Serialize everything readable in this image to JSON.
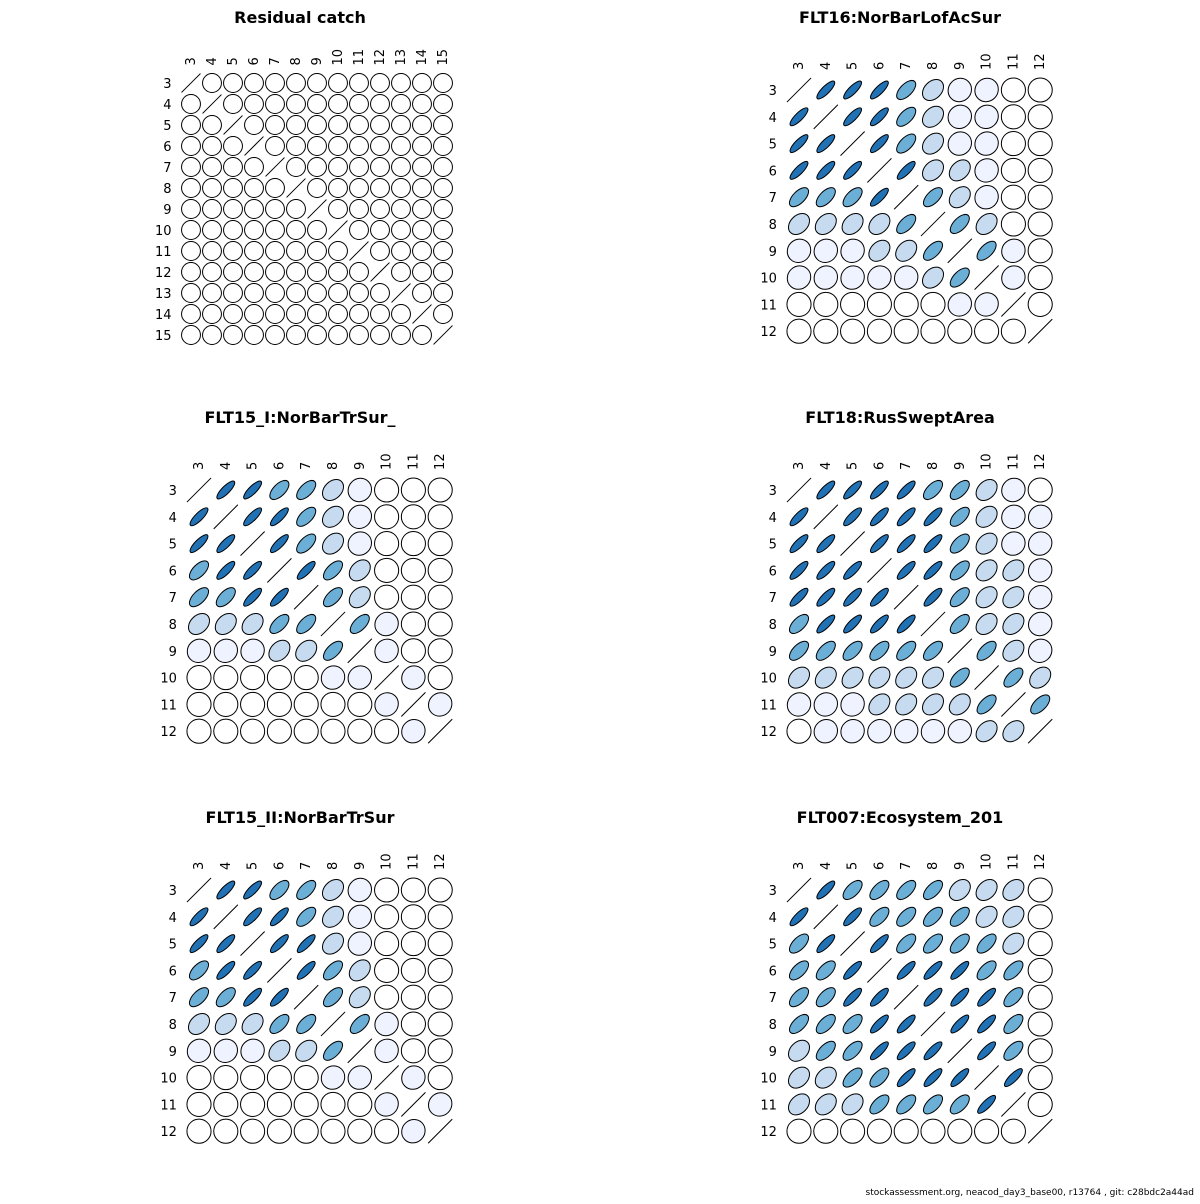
{
  "footer": "stockassessment.org, neacod_day3_base00, r13764 , git: c28bdc2a44ad",
  "color_scale": [
    "#ffffff",
    "#eef3ff",
    "#c6dbef",
    "#6baed6",
    "#2171b5"
  ],
  "chart_data": [
    {
      "type": "heatmap",
      "title": "Residual catch",
      "labels": [
        "3",
        "4",
        "5",
        "6",
        "7",
        "8",
        "9",
        "10",
        "11",
        "12",
        "13",
        "14",
        "15"
      ],
      "levels": [
        [
          5,
          0,
          0,
          0,
          0,
          0,
          0,
          0,
          0,
          0,
          0,
          0,
          0
        ],
        [
          0,
          5,
          0,
          0,
          0,
          0,
          0,
          0,
          0,
          0,
          0,
          0,
          0
        ],
        [
          0,
          0,
          5,
          0,
          0,
          0,
          0,
          0,
          0,
          0,
          0,
          0,
          0
        ],
        [
          0,
          0,
          0,
          5,
          0,
          0,
          0,
          0,
          0,
          0,
          0,
          0,
          0
        ],
        [
          0,
          0,
          0,
          0,
          5,
          0,
          0,
          0,
          0,
          0,
          0,
          0,
          0
        ],
        [
          0,
          0,
          0,
          0,
          0,
          5,
          0,
          0,
          0,
          0,
          0,
          0,
          0
        ],
        [
          0,
          0,
          0,
          0,
          0,
          0,
          5,
          0,
          0,
          0,
          0,
          0,
          0
        ],
        [
          0,
          0,
          0,
          0,
          0,
          0,
          0,
          5,
          0,
          0,
          0,
          0,
          0
        ],
        [
          0,
          0,
          0,
          0,
          0,
          0,
          0,
          0,
          5,
          0,
          0,
          0,
          0
        ],
        [
          0,
          0,
          0,
          0,
          0,
          0,
          0,
          0,
          0,
          5,
          0,
          0,
          0
        ],
        [
          0,
          0,
          0,
          0,
          0,
          0,
          0,
          0,
          0,
          0,
          5,
          0,
          0
        ],
        [
          0,
          0,
          0,
          0,
          0,
          0,
          0,
          0,
          0,
          0,
          0,
          5,
          0
        ],
        [
          0,
          0,
          0,
          0,
          0,
          0,
          0,
          0,
          0,
          0,
          0,
          0,
          5
        ]
      ]
    },
    {
      "type": "heatmap",
      "title": "FLT16:NorBarLofAcSur",
      "labels": [
        "3",
        "4",
        "5",
        "6",
        "7",
        "8",
        "9",
        "10",
        "11",
        "12"
      ],
      "levels": [
        [
          5,
          4,
          4,
          4,
          3,
          2,
          1,
          1,
          0,
          0
        ],
        [
          4,
          5,
          4,
          4,
          3,
          2,
          1,
          1,
          0,
          0
        ],
        [
          4,
          4,
          5,
          4,
          3,
          2,
          1,
          1,
          0,
          0
        ],
        [
          4,
          4,
          4,
          5,
          4,
          2,
          2,
          1,
          0,
          0
        ],
        [
          3,
          3,
          3,
          4,
          5,
          3,
          2,
          1,
          0,
          0
        ],
        [
          2,
          2,
          2,
          2,
          3,
          5,
          3,
          2,
          0,
          0
        ],
        [
          1,
          1,
          1,
          2,
          2,
          3,
          5,
          3,
          1,
          0
        ],
        [
          1,
          1,
          1,
          1,
          1,
          2,
          3,
          5,
          1,
          0
        ],
        [
          0,
          0,
          0,
          0,
          0,
          0,
          1,
          1,
          5,
          0
        ],
        [
          0,
          0,
          0,
          0,
          0,
          0,
          0,
          0,
          0,
          5
        ]
      ]
    },
    {
      "type": "heatmap",
      "title": "FLT15_I:NorBarTrSur_",
      "labels": [
        "3",
        "4",
        "5",
        "6",
        "7",
        "8",
        "9",
        "10",
        "11",
        "12"
      ],
      "levels": [
        [
          5,
          4,
          4,
          3,
          3,
          2,
          1,
          0,
          0,
          0
        ],
        [
          4,
          5,
          4,
          4,
          3,
          2,
          1,
          0,
          0,
          0
        ],
        [
          4,
          4,
          5,
          4,
          3,
          2,
          1,
          0,
          0,
          0
        ],
        [
          3,
          4,
          4,
          5,
          4,
          3,
          2,
          0,
          0,
          0
        ],
        [
          3,
          3,
          4,
          4,
          5,
          3,
          2,
          0,
          0,
          0
        ],
        [
          2,
          2,
          2,
          3,
          3,
          5,
          3,
          1,
          0,
          0
        ],
        [
          1,
          1,
          1,
          2,
          2,
          3,
          5,
          1,
          0,
          0
        ],
        [
          0,
          0,
          0,
          0,
          0,
          1,
          1,
          5,
          1,
          0
        ],
        [
          0,
          0,
          0,
          0,
          0,
          0,
          0,
          1,
          5,
          1
        ],
        [
          0,
          0,
          0,
          0,
          0,
          0,
          0,
          0,
          1,
          5
        ]
      ]
    },
    {
      "type": "heatmap",
      "title": "FLT18:RusSweptArea",
      "labels": [
        "3",
        "4",
        "5",
        "6",
        "7",
        "8",
        "9",
        "10",
        "11",
        "12"
      ],
      "levels": [
        [
          5,
          4,
          4,
          4,
          4,
          3,
          3,
          2,
          1,
          0
        ],
        [
          4,
          5,
          4,
          4,
          4,
          4,
          3,
          2,
          1,
          1
        ],
        [
          4,
          4,
          5,
          4,
          4,
          4,
          3,
          2,
          1,
          1
        ],
        [
          4,
          4,
          4,
          5,
          4,
          4,
          3,
          2,
          2,
          1
        ],
        [
          4,
          4,
          4,
          4,
          5,
          4,
          3,
          2,
          2,
          1
        ],
        [
          3,
          4,
          4,
          4,
          4,
          5,
          3,
          2,
          2,
          1
        ],
        [
          3,
          3,
          3,
          3,
          3,
          3,
          5,
          3,
          2,
          1
        ],
        [
          2,
          2,
          2,
          2,
          2,
          2,
          3,
          5,
          3,
          2
        ],
        [
          1,
          1,
          1,
          2,
          2,
          2,
          2,
          3,
          5,
          3
        ],
        [
          0,
          1,
          1,
          1,
          1,
          1,
          1,
          2,
          2,
          5
        ]
      ]
    },
    {
      "type": "heatmap",
      "title": "FLT15_II:NorBarTrSur",
      "labels": [
        "3",
        "4",
        "5",
        "6",
        "7",
        "8",
        "9",
        "10",
        "11",
        "12"
      ],
      "levels": [
        [
          5,
          4,
          4,
          3,
          3,
          2,
          1,
          0,
          0,
          0
        ],
        [
          4,
          5,
          4,
          4,
          3,
          2,
          1,
          0,
          0,
          0
        ],
        [
          4,
          4,
          5,
          4,
          4,
          2,
          1,
          0,
          0,
          0
        ],
        [
          3,
          4,
          4,
          5,
          4,
          3,
          2,
          0,
          0,
          0
        ],
        [
          3,
          3,
          4,
          4,
          5,
          3,
          2,
          0,
          0,
          0
        ],
        [
          2,
          2,
          2,
          3,
          3,
          5,
          3,
          1,
          0,
          0
        ],
        [
          1,
          1,
          1,
          2,
          2,
          3,
          5,
          1,
          0,
          0
        ],
        [
          0,
          0,
          0,
          0,
          0,
          1,
          1,
          5,
          1,
          0
        ],
        [
          0,
          0,
          0,
          0,
          0,
          0,
          0,
          1,
          5,
          1
        ],
        [
          0,
          0,
          0,
          0,
          0,
          0,
          0,
          0,
          1,
          5
        ]
      ]
    },
    {
      "type": "heatmap",
      "title": "FLT007:Ecosystem_201",
      "labels": [
        "3",
        "4",
        "5",
        "6",
        "7",
        "8",
        "9",
        "10",
        "11",
        "12"
      ],
      "levels": [
        [
          5,
          4,
          3,
          3,
          3,
          3,
          2,
          2,
          2,
          0
        ],
        [
          4,
          5,
          4,
          3,
          3,
          3,
          3,
          2,
          2,
          0
        ],
        [
          3,
          4,
          5,
          4,
          3,
          3,
          3,
          3,
          2,
          0
        ],
        [
          3,
          3,
          4,
          5,
          4,
          4,
          4,
          3,
          3,
          0
        ],
        [
          3,
          3,
          4,
          4,
          5,
          4,
          4,
          4,
          3,
          0
        ],
        [
          3,
          3,
          3,
          4,
          4,
          5,
          4,
          4,
          3,
          0
        ],
        [
          2,
          3,
          3,
          4,
          4,
          4,
          5,
          4,
          3,
          0
        ],
        [
          2,
          2,
          3,
          3,
          4,
          4,
          4,
          5,
          4,
          0
        ],
        [
          2,
          2,
          2,
          3,
          3,
          3,
          3,
          4,
          5,
          0
        ],
        [
          0,
          0,
          0,
          0,
          0,
          0,
          0,
          0,
          0,
          5
        ]
      ]
    }
  ]
}
